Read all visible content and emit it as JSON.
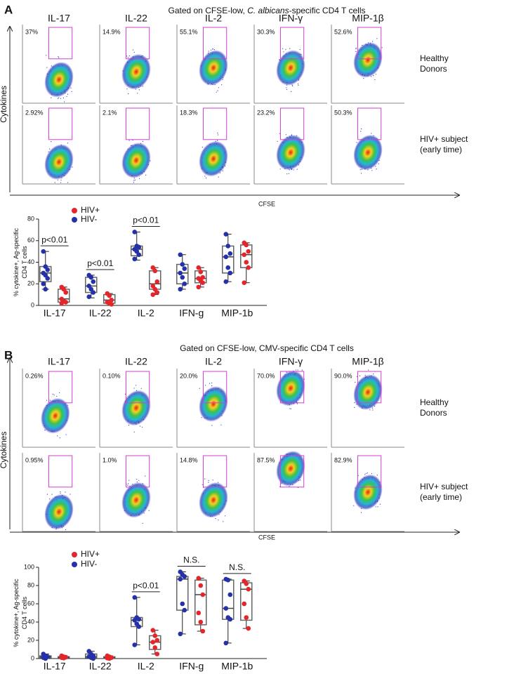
{
  "panels": [
    {
      "label": "A",
      "title_parts": [
        "Gated on CFSE-low, ",
        "C. albicans",
        "-specific CD4 T cells"
      ],
      "cytokines": [
        "IL-17",
        "IL-22",
        "IL-2",
        "IFN-γ",
        "MIP-1β"
      ],
      "y_axis_label": "Cytokines",
      "x_axis_label": "CFSE",
      "rows": [
        {
          "label": [
            "Healthy",
            "Donors"
          ],
          "percents": [
            "37%",
            "14.9%",
            "55.1%",
            "30.3%",
            "52.6%"
          ]
        },
        {
          "label": [
            "HIV+ subject",
            "(early time)"
          ],
          "percents": [
            "2.92%",
            "2.1%",
            "18.3%",
            "23.2%",
            "50.3%"
          ]
        }
      ],
      "chart": {
        "type": "box",
        "ylabel": [
          "% cytokine+, Ag-specific",
          "CD4 T cells"
        ],
        "categories": [
          "IL-17",
          "IL-22",
          "IL-2",
          "IFN-g",
          "MIP-1b"
        ],
        "annotations": [
          "p<0.01",
          "p<0.01",
          "p<0.01",
          null,
          null
        ],
        "ylim": [
          0,
          80
        ],
        "yticks": [
          0,
          20,
          40,
          60,
          80
        ],
        "series": [
          {
            "name": "HIV+",
            "color": "#e3262b",
            "boxes": [
              {
                "min": 2,
                "q1": 3,
                "median": 6,
                "q3": 15,
                "max": 17,
                "points": [
                  17,
                  15,
                  12,
                  6,
                  4,
                  3,
                  2
                ]
              },
              {
                "min": 0,
                "q1": 2,
                "median": 5,
                "q3": 10,
                "max": 11,
                "points": [
                  11,
                  9,
                  5,
                  3,
                  2,
                  1
                ]
              },
              {
                "min": 10,
                "q1": 15,
                "median": 20,
                "q3": 32,
                "max": 35,
                "points": [
                  35,
                  32,
                  22,
                  18,
                  15,
                  12,
                  10
                ]
              },
              {
                "min": 17,
                "q1": 21,
                "median": 25,
                "q3": 32,
                "max": 35,
                "points": [
                  35,
                  31,
                  26,
                  25,
                  23,
                  21,
                  17
                ]
              },
              {
                "min": 21,
                "q1": 35,
                "median": 47,
                "q3": 56,
                "max": 58,
                "points": [
                  58,
                  56,
                  50,
                  47,
                  40,
                  35,
                  21
                ]
              }
            ]
          },
          {
            "name": "HIV-",
            "color": "#2431a8",
            "boxes": [
              {
                "min": 15,
                "q1": 22,
                "median": 30,
                "q3": 36,
                "max": 50,
                "points": [
                  50,
                  36,
                  33,
                  30,
                  28,
                  25,
                  20,
                  15
                ]
              },
              {
                "min": 7,
                "q1": 12,
                "median": 18,
                "q3": 26,
                "max": 28,
                "points": [
                  28,
                  26,
                  22,
                  18,
                  15,
                  12,
                  8
                ]
              },
              {
                "min": 42,
                "q1": 46,
                "median": 52,
                "q3": 55,
                "max": 68,
                "points": [
                  68,
                  55,
                  54,
                  52,
                  50,
                  47,
                  43
                ]
              },
              {
                "min": 15,
                "q1": 20,
                "median": 30,
                "q3": 38,
                "max": 47,
                "points": [
                  47,
                  38,
                  34,
                  30,
                  26,
                  20,
                  15
                ]
              },
              {
                "min": 22,
                "q1": 30,
                "median": 45,
                "q3": 55,
                "max": 66,
                "points": [
                  66,
                  55,
                  48,
                  45,
                  35,
                  30,
                  22
                ]
              }
            ]
          }
        ]
      }
    },
    {
      "label": "B",
      "title_parts": [
        "Gated on CFSE-low, CMV-specific CD4 T cells"
      ],
      "cytokines": [
        "IL-17",
        "IL-22",
        "IL-2",
        "IFN-γ",
        "MIP-1β"
      ],
      "y_axis_label": "Cytokines",
      "x_axis_label": "CFSE",
      "rows": [
        {
          "label": [
            "Healthy",
            "Donors"
          ],
          "percents": [
            "0.26%",
            "0.10%",
            "20.0%",
            "70.0%",
            "90.0%"
          ]
        },
        {
          "label": [
            "HIV+ subject",
            "(early time)"
          ],
          "percents": [
            "0.95%",
            "1.0%",
            "14.8%",
            "87.5%",
            "82.9%"
          ]
        }
      ],
      "chart": {
        "type": "box",
        "ylabel": [
          "% cytokine+, Ag-specific",
          "CD4 T cells"
        ],
        "categories": [
          "IL-17",
          "IL-22",
          "IL-2",
          "IFN-g",
          "MIP-1b"
        ],
        "annotations": [
          null,
          null,
          "p<0.01",
          "N.S.",
          "N.S."
        ],
        "ylim": [
          0,
          100
        ],
        "yticks": [
          0,
          20,
          40,
          60,
          80,
          100
        ],
        "series": [
          {
            "name": "HIV+",
            "color": "#e3262b",
            "boxes": [
              {
                "min": 0,
                "q1": 1,
                "median": 1.5,
                "q3": 2,
                "max": 3,
                "points": [
                  3,
                  2,
                  1.5,
                  1,
                  0.5
                ]
              },
              {
                "min": 0,
                "q1": 0.5,
                "median": 1,
                "q3": 2,
                "max": 3,
                "points": [
                  3,
                  2,
                  1,
                  0.5,
                  0
                ]
              },
              {
                "min": 5,
                "q1": 10,
                "median": 18,
                "q3": 25,
                "max": 31,
                "points": [
                  31,
                  25,
                  20,
                  18,
                  12,
                  5
                ]
              },
              {
                "min": 30,
                "q1": 37,
                "median": 70,
                "q3": 86,
                "max": 88,
                "points": [
                  88,
                  80,
                  70,
                  50,
                  40,
                  30
                ]
              },
              {
                "min": 33,
                "q1": 42,
                "median": 76,
                "q3": 83,
                "max": 85,
                "points": [
                  85,
                  82,
                  76,
                  60,
                  45,
                  33
                ]
              }
            ]
          },
          {
            "name": "HIV-",
            "color": "#2431a8",
            "boxes": [
              {
                "min": 0,
                "q1": 1,
                "median": 2,
                "q3": 3,
                "max": 5,
                "points": [
                  5,
                  3,
                  2,
                  1,
                  0
                ]
              },
              {
                "min": 0,
                "q1": 1,
                "median": 2,
                "q3": 5,
                "max": 8,
                "points": [
                  8,
                  5,
                  3,
                  2,
                  1,
                  0
                ]
              },
              {
                "min": 15,
                "q1": 35,
                "median": 42,
                "q3": 45,
                "max": 67,
                "points": [
                  67,
                  45,
                  43,
                  42,
                  38,
                  35,
                  15
                ]
              },
              {
                "min": 27,
                "q1": 53,
                "median": 87,
                "q3": 90,
                "max": 95,
                "points": [
                  95,
                  92,
                  90,
                  87,
                  60,
                  53,
                  27
                ]
              },
              {
                "min": 17,
                "q1": 43,
                "median": 55,
                "q3": 86,
                "max": 87,
                "points": [
                  87,
                  86,
                  70,
                  55,
                  45,
                  43,
                  17
                ]
              }
            ]
          }
        ]
      }
    }
  ]
}
